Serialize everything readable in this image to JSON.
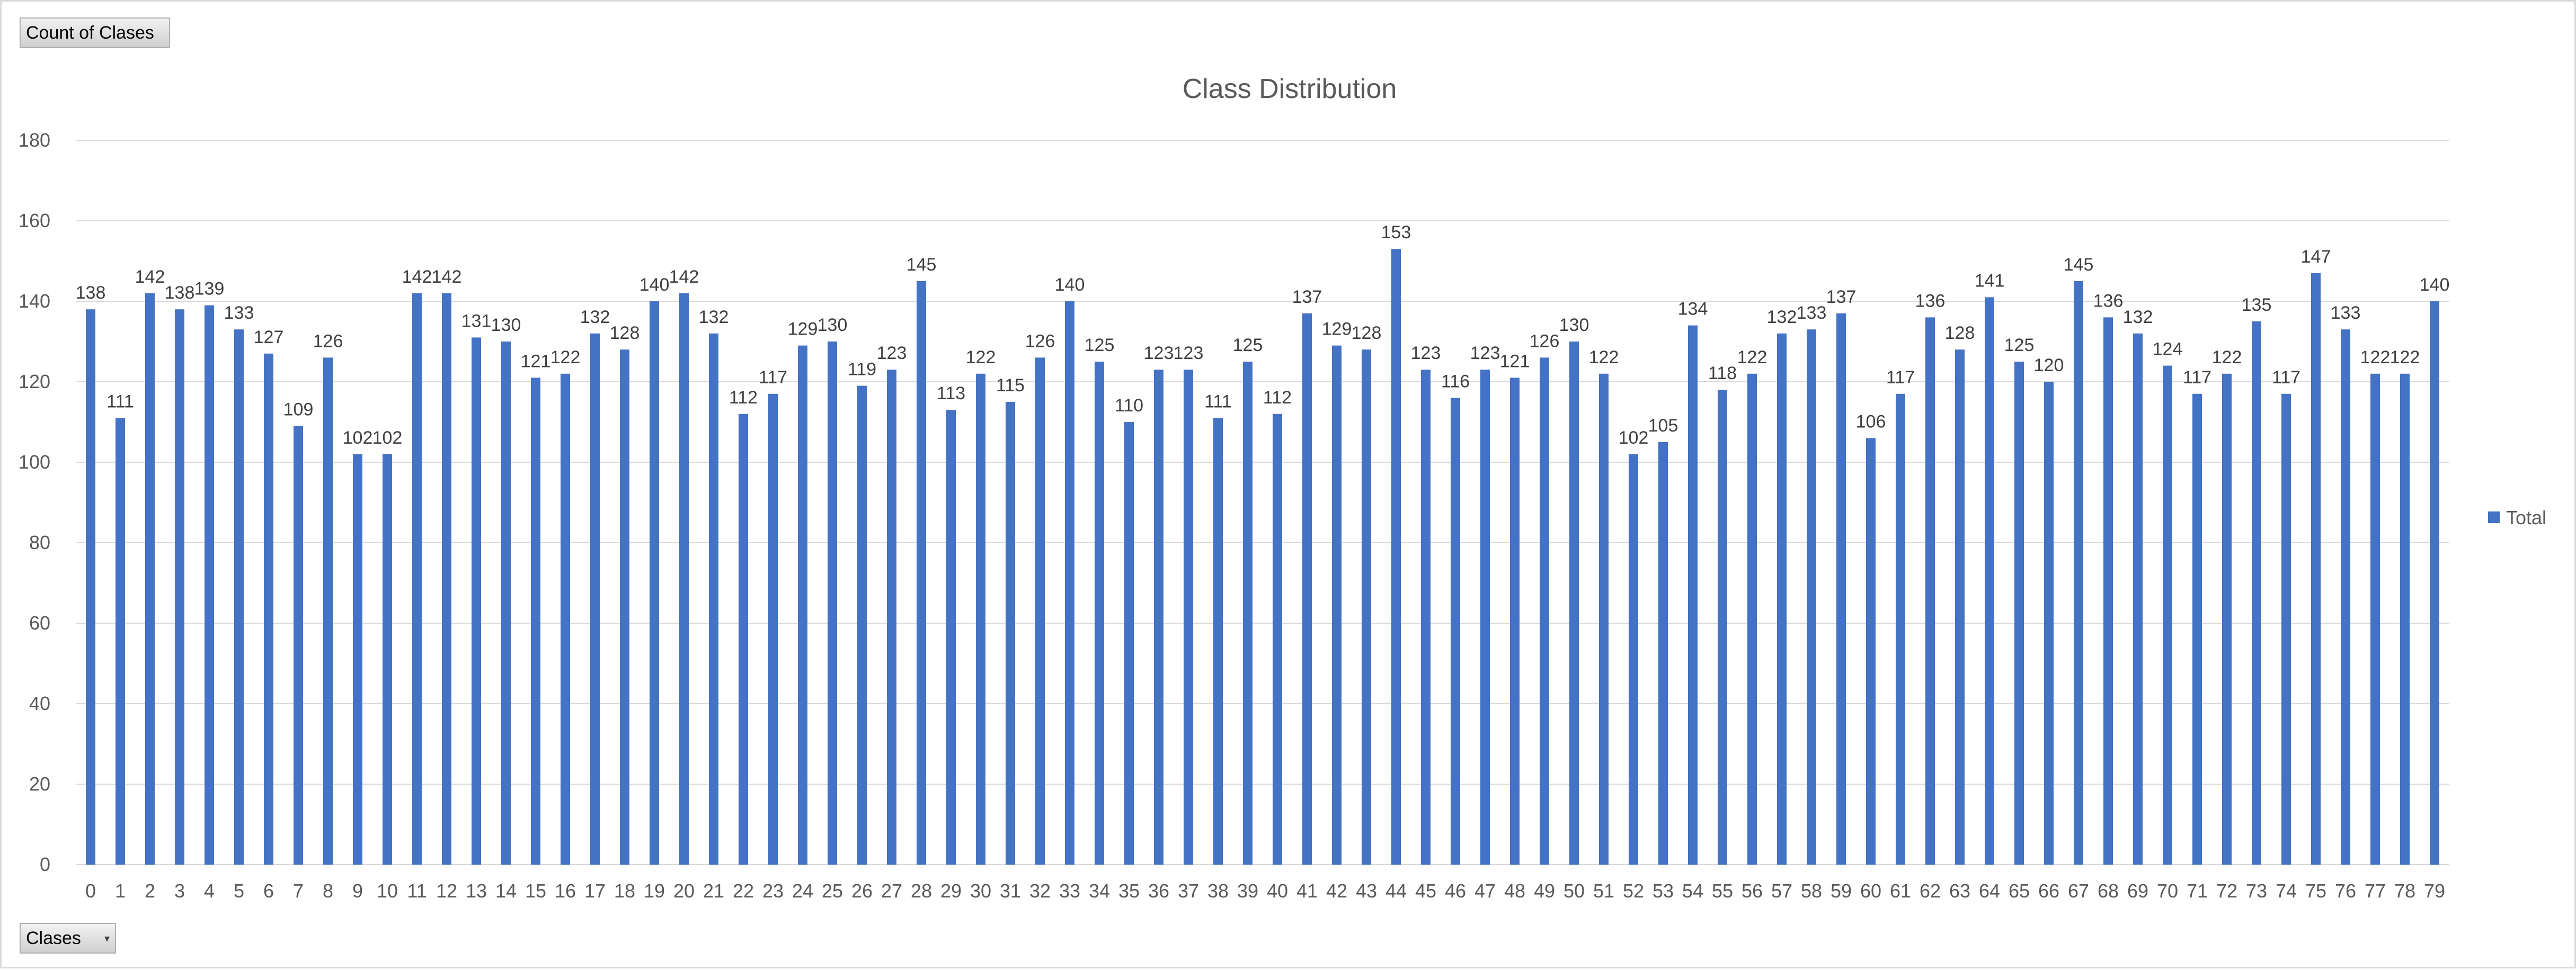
{
  "field_buttons": {
    "values": "Count of Clases",
    "axis": "Clases"
  },
  "colors": {
    "bar": "#4472C4",
    "gridline": "#d9d9d9",
    "text": "#595959"
  },
  "chart_data": {
    "type": "bar",
    "title": "Class Distribution",
    "xlabel": "",
    "ylabel": "",
    "ylim": [
      0,
      180
    ],
    "yticks": [
      0,
      20,
      40,
      60,
      80,
      100,
      120,
      140,
      160,
      180
    ],
    "grid": true,
    "legend_position": "right",
    "categories": [
      "0",
      "1",
      "2",
      "3",
      "4",
      "5",
      "6",
      "7",
      "8",
      "9",
      "10",
      "11",
      "12",
      "13",
      "14",
      "15",
      "16",
      "17",
      "18",
      "19",
      "20",
      "21",
      "22",
      "23",
      "24",
      "25",
      "26",
      "27",
      "28",
      "29",
      "30",
      "31",
      "32",
      "33",
      "34",
      "35",
      "36",
      "37",
      "38",
      "39",
      "40",
      "41",
      "42",
      "43",
      "44",
      "45",
      "46",
      "47",
      "48",
      "49",
      "50",
      "51",
      "52",
      "53",
      "54",
      "55",
      "56",
      "57",
      "58",
      "59",
      "60",
      "61",
      "62",
      "63",
      "64",
      "65",
      "66",
      "67",
      "68",
      "69",
      "70",
      "71",
      "72",
      "73",
      "74",
      "75",
      "76",
      "77",
      "78",
      "79"
    ],
    "series": [
      {
        "name": "Total",
        "values": [
          138,
          111,
          142,
          138,
          139,
          133,
          127,
          109,
          126,
          102,
          102,
          142,
          142,
          131,
          130,
          121,
          122,
          132,
          128,
          140,
          142,
          132,
          112,
          117,
          129,
          130,
          119,
          123,
          145,
          113,
          122,
          115,
          126,
          140,
          125,
          110,
          123,
          123,
          111,
          125,
          112,
          137,
          129,
          128,
          153,
          123,
          116,
          123,
          121,
          126,
          130,
          122,
          102,
          105,
          134,
          118,
          122,
          132,
          133,
          137,
          106,
          117,
          136,
          128,
          141,
          125,
          120,
          145,
          136,
          132,
          124,
          117,
          122,
          135,
          117,
          147,
          133,
          122,
          122,
          140
        ]
      }
    ]
  }
}
